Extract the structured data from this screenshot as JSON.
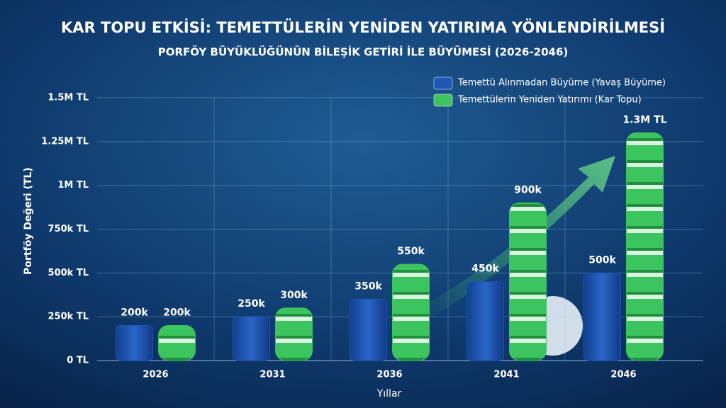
{
  "chart_data": {
    "type": "bar",
    "title": "KAR TOPU ETKİSİ: TEMETTÜLERİN YENİDEN YATIRIMA YÖNLENDİRİLMESİ",
    "subtitle": "PORFÖY BÜYÜKLÜĞÜNÜN BİLEŞİK GETİRİ İLE BÜYÜMESİ (2026-2046)",
    "x_label": "Yıllar",
    "y_label": "Portföy Değeri (TL)",
    "categories": [
      "2026",
      "2031",
      "2036",
      "2041",
      "2046"
    ],
    "series": [
      {
        "name": "Temettü Alınmadan Büyüme (Yavaş Büyüme)",
        "color": "#1f57b5",
        "values": [
          200000,
          250000,
          350000,
          450000,
          500000
        ],
        "value_labels": [
          "200k",
          "250k",
          "350k",
          "450k",
          "500k"
        ]
      },
      {
        "name": "Temettülerin Yeniden Yatırımı (Kar Topu)",
        "color": "#3cc45f",
        "values": [
          200000,
          300000,
          550000,
          900000,
          1300000
        ],
        "value_labels": [
          "200k",
          "300k",
          "550k",
          "900k",
          "1.3M TL"
        ]
      }
    ],
    "ylim": [
      0,
      1500000
    ],
    "yticks": [
      {
        "value": 0,
        "label": "0 TL"
      },
      {
        "value": 250000,
        "label": "250k TL"
      },
      {
        "value": 500000,
        "label": "500k TL"
      },
      {
        "value": 750000,
        "label": "750k TL"
      },
      {
        "value": 1000000,
        "label": "1M TL"
      },
      {
        "value": 1250000,
        "label": "1.25M TL"
      },
      {
        "value": 1500000,
        "label": "1.5M TL"
      }
    ],
    "grid": true,
    "legend": "top-right"
  }
}
